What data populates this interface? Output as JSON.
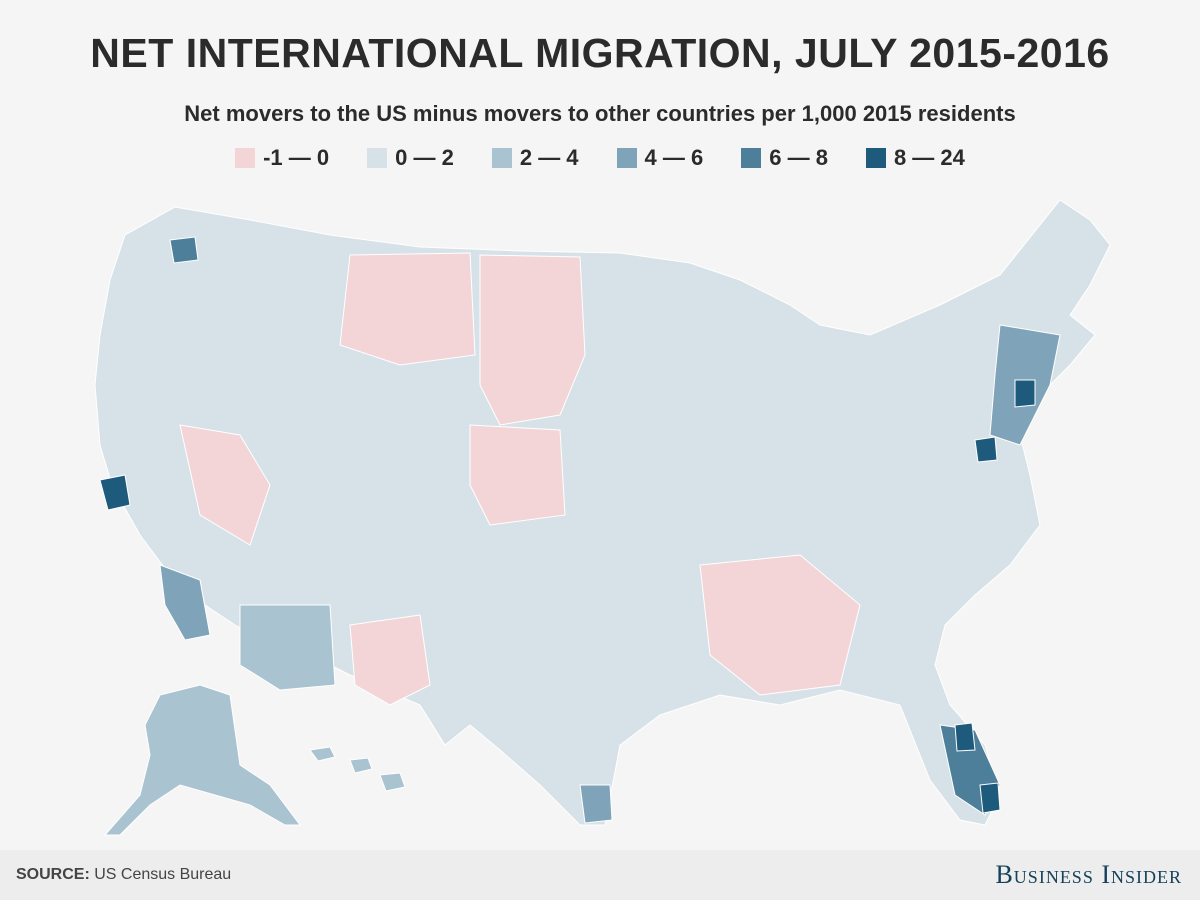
{
  "header": {
    "title": "NET INTERNATIONAL MIGRATION, JULY 2015-2016",
    "subtitle": "Net movers to the US minus movers to other countries per 1,000 2015 residents"
  },
  "legend": [
    {
      "label": "-1 — 0",
      "color": "#f3d5d8"
    },
    {
      "label": "0 — 2",
      "color": "#d6e2e8"
    },
    {
      "label": "2 — 4",
      "color": "#a9c3d1"
    },
    {
      "label": "4 — 6",
      "color": "#7fa3b8"
    },
    {
      "label": "6 — 8",
      "color": "#4d7f9b"
    },
    {
      "label": "8 — 24",
      "color": "#1d5a7c"
    }
  ],
  "map": {
    "regions": [
      {
        "name": "contiguous-us",
        "level": 1
      },
      {
        "name": "alaska",
        "level": 2
      },
      {
        "name": "hawaii",
        "level": 2
      },
      {
        "name": "north-dakota-south-dakota",
        "level": 0
      },
      {
        "name": "montana-east",
        "level": 0
      },
      {
        "name": "nebraska-kansas-west",
        "level": 0
      },
      {
        "name": "nevada-utah",
        "level": 0
      },
      {
        "name": "southeast",
        "level": 0
      },
      {
        "name": "arizona",
        "level": 2
      },
      {
        "name": "southern-california",
        "level": 3
      },
      {
        "name": "west-texas",
        "level": 0
      },
      {
        "name": "northeast-corridor",
        "level": 3
      },
      {
        "name": "south-florida",
        "level": 4
      },
      {
        "name": "bay-area",
        "level": 5
      },
      {
        "name": "seattle",
        "level": 4
      },
      {
        "name": "new-york-city",
        "level": 5
      },
      {
        "name": "washington-dc",
        "level": 5
      },
      {
        "name": "houston",
        "level": 3
      },
      {
        "name": "miami",
        "level": 5
      },
      {
        "name": "orlando",
        "level": 5
      }
    ]
  },
  "footer": {
    "source_label": "SOURCE:",
    "source_text": "US Census Bureau",
    "brand": "Business Insider"
  }
}
